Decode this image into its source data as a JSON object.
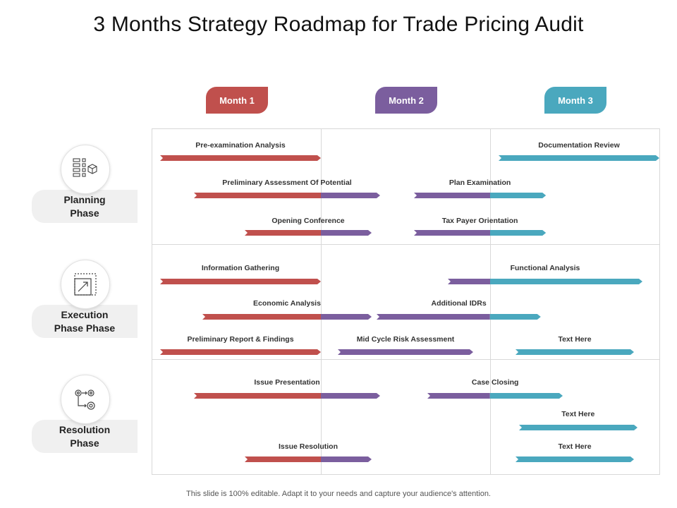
{
  "title": "3 Months Strategy Roadmap for Trade Pricing Audit",
  "footer": "This slide is 100% editable. Adapt it to your needs and capture your audience's attention.",
  "months": [
    "Month 1",
    "Month 2",
    "Month 3"
  ],
  "colors": {
    "month1": "#c0504d",
    "month2": "#7b5e9e",
    "month3": "#4aa8be"
  },
  "phases": [
    {
      "label": "Planning\nPhase",
      "icon": "blocks-cube-icon"
    },
    {
      "label": "Execution\nPhase Phase",
      "icon": "expand-frame-icon"
    },
    {
      "label": "Resolution\nPhase",
      "icon": "gears-flow-icon"
    }
  ],
  "tasks": [
    {
      "label": "Pre-examination Analysis",
      "start": 0.05,
      "end": 1.0
    },
    {
      "label": "Preliminary Assessment Of Potential",
      "start": 0.25,
      "end": 1.35
    },
    {
      "label": "Opening Conference",
      "start": 0.55,
      "end": 1.3
    },
    {
      "label": "Documentation Review",
      "start": 2.05,
      "end": 3.0
    },
    {
      "label": "Plan Examination",
      "start": 1.55,
      "end": 2.33
    },
    {
      "label": "Tax Payer Orientation",
      "start": 1.55,
      "end": 2.33
    },
    {
      "label": "Information Gathering",
      "start": 0.05,
      "end": 1.0
    },
    {
      "label": "Economic Analysis",
      "start": 0.3,
      "end": 1.3
    },
    {
      "label": "Preliminary Report & Findings",
      "start": 0.05,
      "end": 1.0
    },
    {
      "label": "Functional Analysis",
      "start": 1.75,
      "end": 2.9
    },
    {
      "label": "Additional IDRs",
      "start": 1.33,
      "end": 2.3
    },
    {
      "label": "Mid Cycle Risk Assessment",
      "start": 1.1,
      "end": 1.9
    },
    {
      "label": "Text Here",
      "start": 2.15,
      "end": 2.85
    },
    {
      "label": "Issue Presentation",
      "start": 0.25,
      "end": 1.35
    },
    {
      "label": "Issue Resolution",
      "start": 0.55,
      "end": 1.3
    },
    {
      "label": "Case Closing",
      "start": 1.63,
      "end": 2.43
    },
    {
      "label": "Text Here",
      "start": 2.17,
      "end": 2.87
    },
    {
      "label": "Text Here",
      "start": 2.15,
      "end": 2.85
    }
  ]
}
